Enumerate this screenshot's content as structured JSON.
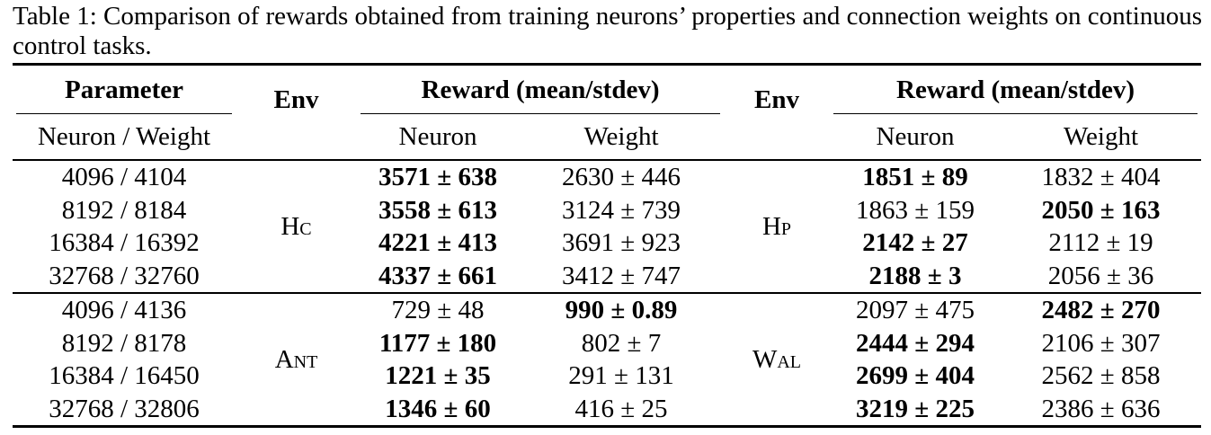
{
  "caption": "Table 1: Comparison of rewards obtained from training neurons’ properties and connection weights on continuous control tasks.",
  "headers": {
    "parameter": "Parameter",
    "env": "Env",
    "reward": "Reward (mean/stdev)",
    "neuron_weight": "Neuron / Weight",
    "neuron": "Neuron",
    "weight": "Weight"
  },
  "groups": [
    {
      "left_env": "Hc",
      "right_env": "Hp",
      "rows": [
        {
          "param": "4096 / 4104",
          "l_neuron": "3571 ± 638",
          "l_neuron_bold": true,
          "l_weight": "2630 ± 446",
          "l_weight_bold": false,
          "r_neuron": "1851 ± 89",
          "r_neuron_bold": true,
          "r_weight": "1832 ± 404",
          "r_weight_bold": false
        },
        {
          "param": "8192 / 8184",
          "l_neuron": "3558 ± 613",
          "l_neuron_bold": true,
          "l_weight": "3124 ± 739",
          "l_weight_bold": false,
          "r_neuron": "1863 ± 159",
          "r_neuron_bold": false,
          "r_weight": "2050 ± 163",
          "r_weight_bold": true
        },
        {
          "param": "16384 / 16392",
          "l_neuron": "4221 ± 413",
          "l_neuron_bold": true,
          "l_weight": "3691 ± 923",
          "l_weight_bold": false,
          "r_neuron": "2142 ± 27",
          "r_neuron_bold": true,
          "r_weight": "2112 ± 19",
          "r_weight_bold": false
        },
        {
          "param": "32768 / 32760",
          "l_neuron": "4337 ± 661",
          "l_neuron_bold": true,
          "l_weight": "3412 ± 747",
          "l_weight_bold": false,
          "r_neuron": "2188 ± 3",
          "r_neuron_bold": true,
          "r_weight": "2056 ± 36",
          "r_weight_bold": false
        }
      ]
    },
    {
      "left_env": "Ant",
      "right_env": "Wal",
      "rows": [
        {
          "param": "4096 / 4136",
          "l_neuron": "729 ± 48",
          "l_neuron_bold": false,
          "l_weight": "990 ± 0.89",
          "l_weight_bold": true,
          "r_neuron": "2097 ± 475",
          "r_neuron_bold": false,
          "r_weight": "2482 ± 270",
          "r_weight_bold": true
        },
        {
          "param": "8192 / 8178",
          "l_neuron": "1177 ± 180",
          "l_neuron_bold": true,
          "l_weight": "802 ± 7",
          "l_weight_bold": false,
          "r_neuron": "2444 ± 294",
          "r_neuron_bold": true,
          "r_weight": "2106 ± 307",
          "r_weight_bold": false
        },
        {
          "param": "16384 / 16450",
          "l_neuron": "1221 ± 35",
          "l_neuron_bold": true,
          "l_weight": "291 ± 131",
          "l_weight_bold": false,
          "r_neuron": "2699 ± 404",
          "r_neuron_bold": true,
          "r_weight": "2562 ± 858",
          "r_weight_bold": false
        },
        {
          "param": "32768 / 32806",
          "l_neuron": "1346 ± 60",
          "l_neuron_bold": true,
          "l_weight": "416 ± 25",
          "l_weight_bold": false,
          "r_neuron": "3219 ± 225",
          "r_neuron_bold": true,
          "r_weight": "2386 ± 636",
          "r_weight_bold": false
        }
      ]
    }
  ]
}
